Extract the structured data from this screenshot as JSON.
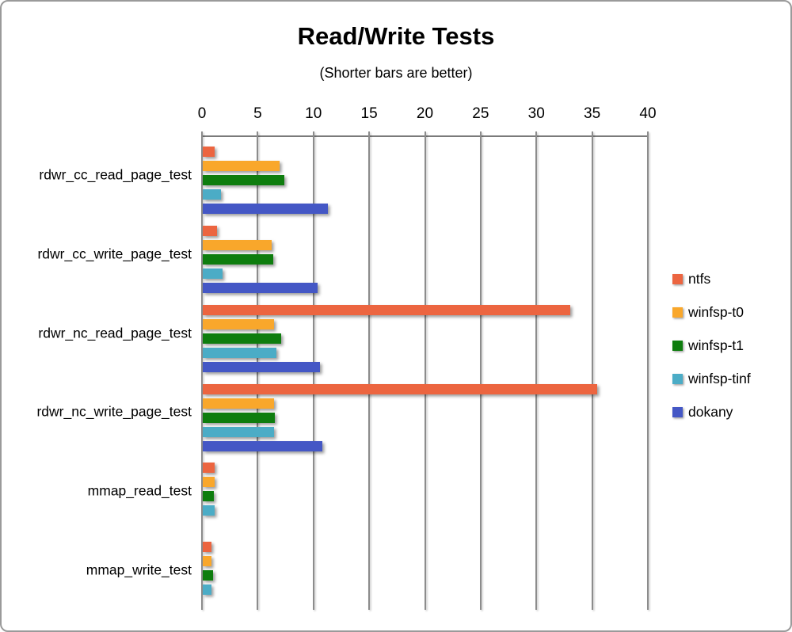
{
  "title": "Read/Write Tests",
  "subtitle": "(Shorter bars are better)",
  "chart_data": {
    "type": "bar",
    "orientation": "horizontal",
    "title": "Read/Write Tests",
    "subtitle": "(Shorter bars are better)",
    "xlabel": "",
    "ylabel": "",
    "xlim": [
      0,
      40
    ],
    "x_ticks": [
      0,
      5,
      10,
      15,
      20,
      25,
      30,
      35,
      40
    ],
    "grid": true,
    "legend_position": "right",
    "categories": [
      "rdwr_cc_read_page_test",
      "rdwr_cc_write_page_test",
      "rdwr_nc_read_page_test",
      "rdwr_nc_write_page_test",
      "mmap_read_test",
      "mmap_write_test"
    ],
    "series": [
      {
        "name": "ntfs",
        "color": "#EC6540",
        "values": [
          1.1,
          1.3,
          33.0,
          35.4,
          1.1,
          0.8
        ]
      },
      {
        "name": "winfsp-t0",
        "color": "#F9A72B",
        "values": [
          6.9,
          6.2,
          6.4,
          6.4,
          1.1,
          0.8
        ]
      },
      {
        "name": "winfsp-t1",
        "color": "#0E7D0E",
        "values": [
          7.3,
          6.3,
          7.0,
          6.5,
          1.0,
          0.9
        ]
      },
      {
        "name": "winfsp-tinf",
        "color": "#4BACC6",
        "values": [
          1.6,
          1.8,
          6.6,
          6.4,
          1.1,
          0.8
        ]
      },
      {
        "name": "dokany",
        "color": "#4457C5",
        "values": [
          11.2,
          10.3,
          10.5,
          10.7,
          0,
          0
        ]
      }
    ],
    "axis_color": "#7a7a7a",
    "gridline_color": "#8c8c8c"
  }
}
